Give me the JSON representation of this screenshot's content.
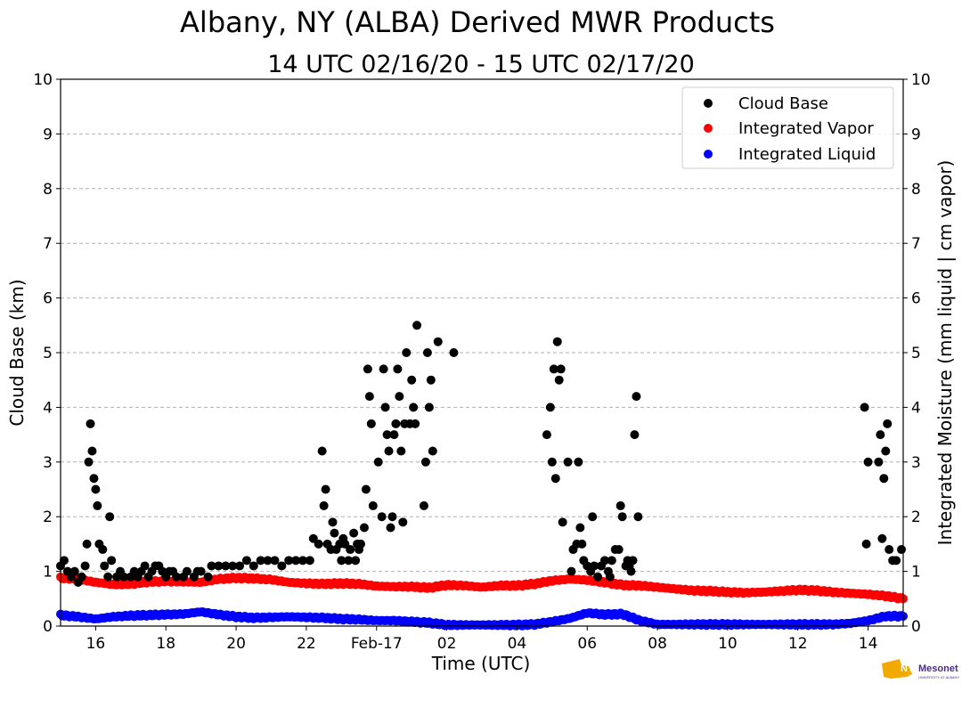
{
  "chart_data": {
    "type": "scatter",
    "title": "Albany, NY (ALBA) Derived MWR Products",
    "subtitle": "14 UTC 02/16/20 - 15 UTC 02/17/20",
    "xlabel": "Time (UTC)",
    "ylabel": "Cloud Base (km)",
    "y2label": "Integrated Moisture (mm liquid | cm vapor)",
    "xlim": [
      15.0,
      39.0
    ],
    "ylim": [
      0,
      10
    ],
    "y2lim": [
      0,
      10
    ],
    "x_tick_labels": [
      {
        "x": 16,
        "label": "16"
      },
      {
        "x": 18,
        "label": "18"
      },
      {
        "x": 20,
        "label": "20"
      },
      {
        "x": 22,
        "label": "22"
      },
      {
        "x": 24,
        "label": "Feb-17"
      },
      {
        "x": 26,
        "label": "02"
      },
      {
        "x": 28,
        "label": "04"
      },
      {
        "x": 30,
        "label": "06"
      },
      {
        "x": 32,
        "label": "08"
      },
      {
        "x": 34,
        "label": "10"
      },
      {
        "x": 36,
        "label": "12"
      },
      {
        "x": 38,
        "label": "14"
      }
    ],
    "y_ticks": [
      0,
      1,
      2,
      3,
      4,
      5,
      6,
      7,
      8,
      9,
      10
    ],
    "grid": "horizontal dashed",
    "legend_position": "top-right",
    "series": [
      {
        "name": "Cloud Base",
        "color": "#000000",
        "points": [
          [
            15.0,
            1.1
          ],
          [
            15.1,
            1.2
          ],
          [
            15.2,
            1.0
          ],
          [
            15.3,
            0.9
          ],
          [
            15.4,
            1.0
          ],
          [
            15.5,
            0.8
          ],
          [
            15.6,
            0.9
          ],
          [
            15.7,
            1.1
          ],
          [
            15.75,
            1.5
          ],
          [
            15.8,
            3.0
          ],
          [
            15.85,
            3.7
          ],
          [
            15.9,
            3.2
          ],
          [
            15.95,
            2.7
          ],
          [
            16.0,
            2.5
          ],
          [
            16.05,
            2.2
          ],
          [
            16.1,
            1.5
          ],
          [
            16.2,
            1.4
          ],
          [
            16.25,
            1.1
          ],
          [
            16.35,
            0.9
          ],
          [
            16.4,
            2.0
          ],
          [
            16.45,
            1.2
          ],
          [
            16.6,
            0.9
          ],
          [
            16.7,
            1.0
          ],
          [
            16.8,
            0.9
          ],
          [
            17.0,
            0.9
          ],
          [
            17.1,
            1.0
          ],
          [
            17.2,
            0.9
          ],
          [
            17.3,
            1.0
          ],
          [
            17.4,
            1.1
          ],
          [
            17.5,
            0.9
          ],
          [
            17.6,
            1.0
          ],
          [
            17.7,
            1.1
          ],
          [
            17.8,
            1.1
          ],
          [
            17.9,
            1.0
          ],
          [
            18.0,
            0.9
          ],
          [
            18.1,
            1.0
          ],
          [
            18.2,
            1.0
          ],
          [
            18.3,
            0.9
          ],
          [
            18.5,
            0.9
          ],
          [
            18.6,
            1.0
          ],
          [
            18.8,
            0.9
          ],
          [
            18.9,
            1.0
          ],
          [
            19.0,
            1.0
          ],
          [
            19.2,
            0.9
          ],
          [
            19.3,
            1.1
          ],
          [
            19.5,
            1.1
          ],
          [
            19.7,
            1.1
          ],
          [
            19.9,
            1.1
          ],
          [
            20.1,
            1.1
          ],
          [
            20.3,
            1.2
          ],
          [
            20.5,
            1.1
          ],
          [
            20.7,
            1.2
          ],
          [
            20.9,
            1.2
          ],
          [
            21.1,
            1.2
          ],
          [
            21.3,
            1.1
          ],
          [
            21.5,
            1.2
          ],
          [
            21.7,
            1.2
          ],
          [
            21.9,
            1.2
          ],
          [
            22.1,
            1.2
          ],
          [
            22.2,
            1.6
          ],
          [
            22.35,
            1.5
          ],
          [
            22.45,
            3.2
          ],
          [
            22.5,
            2.2
          ],
          [
            22.55,
            2.5
          ],
          [
            22.6,
            1.5
          ],
          [
            22.7,
            1.4
          ],
          [
            22.75,
            1.9
          ],
          [
            22.8,
            1.7
          ],
          [
            22.85,
            1.4
          ],
          [
            22.95,
            1.5
          ],
          [
            23.0,
            1.2
          ],
          [
            23.05,
            1.6
          ],
          [
            23.1,
            1.5
          ],
          [
            23.2,
            1.2
          ],
          [
            23.25,
            1.4
          ],
          [
            23.35,
            1.7
          ],
          [
            23.4,
            1.2
          ],
          [
            23.45,
            1.5
          ],
          [
            23.5,
            1.4
          ],
          [
            23.55,
            1.5
          ],
          [
            23.65,
            1.8
          ],
          [
            23.7,
            2.5
          ],
          [
            23.75,
            4.7
          ],
          [
            23.8,
            4.2
          ],
          [
            23.85,
            3.7
          ],
          [
            23.9,
            2.2
          ],
          [
            24.05,
            3.0
          ],
          [
            24.15,
            2.0
          ],
          [
            24.2,
            4.7
          ],
          [
            24.25,
            4.0
          ],
          [
            24.3,
            3.5
          ],
          [
            24.35,
            3.2
          ],
          [
            24.4,
            1.8
          ],
          [
            24.45,
            2.0
          ],
          [
            24.5,
            3.5
          ],
          [
            24.55,
            3.7
          ],
          [
            24.6,
            4.7
          ],
          [
            24.65,
            4.2
          ],
          [
            24.7,
            3.2
          ],
          [
            24.75,
            1.9
          ],
          [
            24.8,
            3.7
          ],
          [
            24.85,
            5.0
          ],
          [
            24.95,
            3.7
          ],
          [
            25.0,
            4.5
          ],
          [
            25.05,
            4.0
          ],
          [
            25.1,
            3.7
          ],
          [
            25.15,
            5.5
          ],
          [
            25.35,
            2.2
          ],
          [
            25.4,
            3.0
          ],
          [
            25.45,
            5.0
          ],
          [
            25.5,
            4.0
          ],
          [
            25.55,
            4.5
          ],
          [
            25.6,
            3.2
          ],
          [
            25.75,
            5.2
          ],
          [
            26.2,
            5.0
          ],
          [
            28.85,
            3.5
          ],
          [
            28.95,
            4.0
          ],
          [
            29.0,
            3.0
          ],
          [
            29.05,
            4.7
          ],
          [
            29.1,
            2.7
          ],
          [
            29.15,
            5.2
          ],
          [
            29.2,
            4.5
          ],
          [
            29.25,
            4.7
          ],
          [
            29.3,
            1.9
          ],
          [
            29.45,
            3.0
          ],
          [
            29.55,
            1.0
          ],
          [
            29.6,
            1.4
          ],
          [
            29.7,
            1.5
          ],
          [
            29.75,
            3.0
          ],
          [
            29.8,
            1.8
          ],
          [
            29.85,
            1.5
          ],
          [
            29.9,
            1.2
          ],
          [
            30.0,
            1.1
          ],
          [
            30.1,
            1.0
          ],
          [
            30.15,
            2.0
          ],
          [
            30.2,
            1.1
          ],
          [
            30.3,
            0.9
          ],
          [
            30.4,
            1.1
          ],
          [
            30.5,
            1.2
          ],
          [
            30.6,
            1.0
          ],
          [
            30.65,
            0.9
          ],
          [
            30.7,
            1.2
          ],
          [
            30.8,
            1.4
          ],
          [
            30.9,
            1.4
          ],
          [
            30.95,
            2.2
          ],
          [
            31.0,
            2.0
          ],
          [
            31.1,
            1.1
          ],
          [
            31.15,
            1.2
          ],
          [
            31.2,
            1.1
          ],
          [
            31.25,
            1.0
          ],
          [
            31.3,
            1.2
          ],
          [
            31.35,
            3.5
          ],
          [
            31.4,
            4.2
          ],
          [
            31.45,
            2.0
          ],
          [
            37.9,
            4.0
          ],
          [
            37.95,
            1.5
          ],
          [
            38.0,
            3.0
          ],
          [
            38.3,
            3.0
          ],
          [
            38.35,
            3.5
          ],
          [
            38.4,
            1.6
          ],
          [
            38.45,
            2.7
          ],
          [
            38.5,
            3.2
          ],
          [
            38.55,
            3.7
          ],
          [
            38.6,
            1.4
          ],
          [
            38.7,
            1.2
          ],
          [
            38.8,
            1.2
          ],
          [
            38.95,
            1.4
          ]
        ]
      },
      {
        "name": "Integrated Vapor",
        "color": "#ff0000",
        "x": [
          15.0,
          15.5,
          16.0,
          16.5,
          17.0,
          17.5,
          18.0,
          18.5,
          19.0,
          19.5,
          20.0,
          20.5,
          21.0,
          21.5,
          22.0,
          22.5,
          23.0,
          23.5,
          24.0,
          24.5,
          25.0,
          25.5,
          26.0,
          26.5,
          27.0,
          27.5,
          28.0,
          28.5,
          29.0,
          29.5,
          30.0,
          30.5,
          31.0,
          31.5,
          32.0,
          32.5,
          33.0,
          33.5,
          34.0,
          34.5,
          35.0,
          35.5,
          36.0,
          36.5,
          37.0,
          37.5,
          38.0,
          38.5,
          39.0
        ],
        "values": [
          0.88,
          0.86,
          0.8,
          0.76,
          0.77,
          0.81,
          0.82,
          0.81,
          0.8,
          0.86,
          0.88,
          0.87,
          0.85,
          0.8,
          0.78,
          0.77,
          0.78,
          0.77,
          0.73,
          0.72,
          0.72,
          0.7,
          0.75,
          0.74,
          0.71,
          0.74,
          0.74,
          0.77,
          0.83,
          0.86,
          0.84,
          0.8,
          0.75,
          0.74,
          0.71,
          0.68,
          0.65,
          0.64,
          0.62,
          0.61,
          0.62,
          0.64,
          0.66,
          0.65,
          0.62,
          0.6,
          0.58,
          0.55,
          0.5
        ]
      },
      {
        "name": "Integrated Liquid",
        "color": "#0000ff",
        "x": [
          15.0,
          15.5,
          16.0,
          16.5,
          17.0,
          17.5,
          18.0,
          18.5,
          19.0,
          19.5,
          20.0,
          20.5,
          21.0,
          21.5,
          22.0,
          22.5,
          23.0,
          23.5,
          24.0,
          24.5,
          25.0,
          25.5,
          26.0,
          26.5,
          27.0,
          27.5,
          28.0,
          28.5,
          29.0,
          29.5,
          30.0,
          30.5,
          31.0,
          31.5,
          32.0,
          32.5,
          33.0,
          33.5,
          34.0,
          34.5,
          35.0,
          35.5,
          36.0,
          36.5,
          37.0,
          37.5,
          38.0,
          38.5,
          39.0
        ],
        "values": [
          0.2,
          0.17,
          0.13,
          0.17,
          0.19,
          0.2,
          0.21,
          0.22,
          0.26,
          0.21,
          0.17,
          0.15,
          0.16,
          0.17,
          0.16,
          0.15,
          0.13,
          0.12,
          0.1,
          0.1,
          0.08,
          0.06,
          0.02,
          0.02,
          0.02,
          0.02,
          0.02,
          0.03,
          0.08,
          0.14,
          0.24,
          0.21,
          0.22,
          0.1,
          0.03,
          0.03,
          0.03,
          0.03,
          0.03,
          0.03,
          0.03,
          0.03,
          0.03,
          0.03,
          0.03,
          0.05,
          0.1,
          0.18,
          0.18
        ]
      }
    ],
    "logo": {
      "text": "NYS Mesonet",
      "subtext": "UNIVERSITY AT ALBANY"
    }
  }
}
